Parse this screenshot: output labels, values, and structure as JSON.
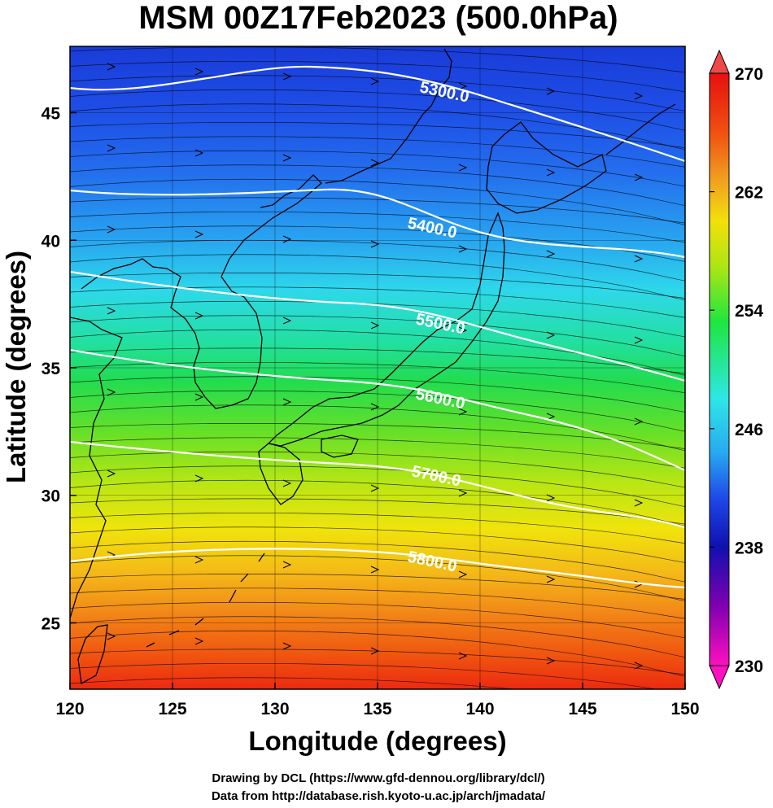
{
  "title": "MSM 00Z17Feb2023 (500.0hPa)",
  "axes": {
    "xlabel": "Longitude (degrees)",
    "ylabel": "Latitude  (degrees)",
    "x_range": [
      120,
      150
    ],
    "y_range": [
      22.4,
      47.6
    ],
    "x_ticks": [
      "120",
      "125",
      "130",
      "135",
      "140",
      "145",
      "150"
    ],
    "y_ticks": [
      "25",
      "30",
      "35",
      "40",
      "45"
    ]
  },
  "colorbar": {
    "range": [
      230,
      270
    ],
    "tick_labels": [
      "270",
      "262",
      "254",
      "246",
      "238",
      "230"
    ],
    "colors": [
      "#ff10c0",
      "#8000b0",
      "#1010b0",
      "#1e46e6",
      "#28aaf0",
      "#2ee6e6",
      "#1ee640",
      "#a8e614",
      "#f2e00a",
      "#f0a020",
      "#f05010",
      "#e61010"
    ]
  },
  "contours": [
    {
      "label": "5300.0"
    },
    {
      "label": "5400.0"
    },
    {
      "label": "5500.0"
    },
    {
      "label": "5600.0"
    },
    {
      "label": "5700.0"
    },
    {
      "label": "5800.0"
    }
  ],
  "credits": {
    "line1": "Drawing by DCL (https://www.gfd-dennou.org/library/dcl/)",
    "line2": "Data from http://database.rish.kyoto-u.ac.jp/arch/jmadata/"
  }
}
